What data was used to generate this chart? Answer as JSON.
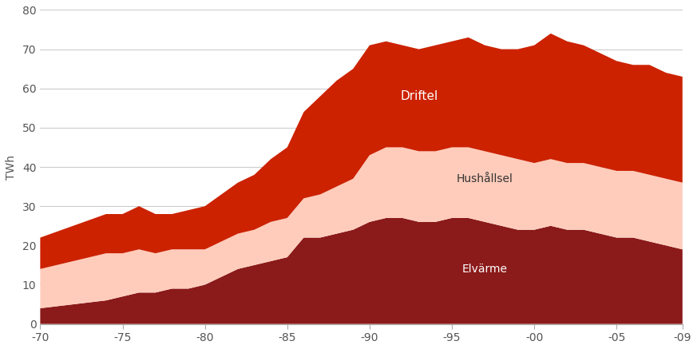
{
  "years": [
    1970,
    1971,
    1972,
    1973,
    1974,
    1975,
    1976,
    1977,
    1978,
    1979,
    1980,
    1981,
    1982,
    1983,
    1984,
    1985,
    1986,
    1987,
    1988,
    1989,
    1990,
    1991,
    1992,
    1993,
    1994,
    1995,
    1996,
    1997,
    1998,
    1999,
    2000,
    2001,
    2002,
    2003,
    2004,
    2005,
    2006,
    2007,
    2008,
    2009
  ],
  "elvarme": [
    4,
    4.5,
    5,
    5.5,
    6,
    7,
    8,
    8,
    9,
    9,
    10,
    12,
    14,
    15,
    16,
    17,
    22,
    22,
    23,
    24,
    26,
    27,
    27,
    26,
    26,
    27,
    27,
    26,
    25,
    24,
    24,
    25,
    24,
    24,
    23,
    22,
    22,
    21,
    20,
    19
  ],
  "hushallsel": [
    10,
    10.5,
    11,
    11.5,
    12,
    11,
    11,
    10,
    10,
    10,
    9,
    9,
    9,
    9,
    10,
    10,
    10,
    11,
    12,
    13,
    17,
    18,
    18,
    18,
    18,
    18,
    18,
    18,
    18,
    18,
    17,
    17,
    17,
    17,
    17,
    17,
    17,
    17,
    17,
    17
  ],
  "driftel": [
    8,
    8.5,
    9,
    9.5,
    10,
    10,
    11,
    10,
    9,
    10,
    11,
    12,
    13,
    14,
    16,
    18,
    22,
    25,
    27,
    28,
    28,
    27,
    26,
    26,
    27,
    27,
    28,
    27,
    27,
    28,
    30,
    32,
    31,
    30,
    29,
    28,
    27,
    28,
    27,
    27
  ],
  "color_elvarme": "#8B1A1A",
  "color_hushallsel": "#FFCCBB",
  "color_driftel": "#CC2200",
  "label_elvarme": "Elvärme",
  "label_hushallsel": "Hushållsel",
  "label_driftel": "Driftel",
  "ylabel": "TWh",
  "ylim": [
    0,
    80
  ],
  "xtick_years": [
    1970,
    1975,
    1980,
    1985,
    1990,
    1995,
    2000,
    2005,
    2009
  ],
  "xtick_labels": [
    "-70",
    "-75",
    "-80",
    "-85",
    "-90",
    "-95",
    "-00",
    "-05",
    "-09"
  ],
  "yticks": [
    0,
    10,
    20,
    30,
    40,
    50,
    60,
    70,
    80
  ],
  "background_color": "#ffffff",
  "grid_color": "#cccccc"
}
